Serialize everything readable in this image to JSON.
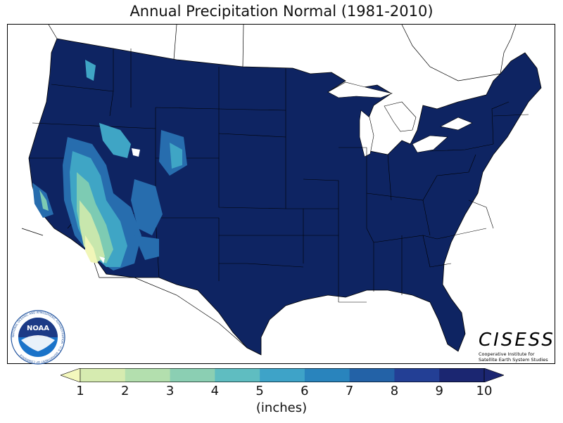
{
  "title": "Annual Precipitation Normal (1981-2010)",
  "colorbar": {
    "units": "(inches)",
    "ticks": [
      "1",
      "2",
      "3",
      "4",
      "5",
      "6",
      "7",
      "8",
      "9",
      "10"
    ],
    "colors": [
      "#f4f8bd",
      "#d6ebb0",
      "#b3dfae",
      "#8bcfb3",
      "#5fbdc1",
      "#3ea3c8",
      "#2984bd",
      "#2362a7",
      "#233f95",
      "#1b2671"
    ],
    "extend": "both"
  },
  "map": {
    "region": "contiguous-united-states",
    "dominant_color": "#0e2462",
    "dry_colors": [
      "#f1f6b8",
      "#c8e7ad",
      "#7dcbb3",
      "#3fa5c5",
      "#276dae"
    ]
  },
  "logos": {
    "left_logo_text": "NOAA",
    "left_logo_ring_text": "NATIONAL OCEANIC AND ATMOSPHERIC ADMINISTRATION · U.S. DEPARTMENT OF COMMERCE",
    "right_logo_name": "CISESS",
    "right_logo_full": "Cooperative Institute for Satellite Earth System Studies"
  }
}
